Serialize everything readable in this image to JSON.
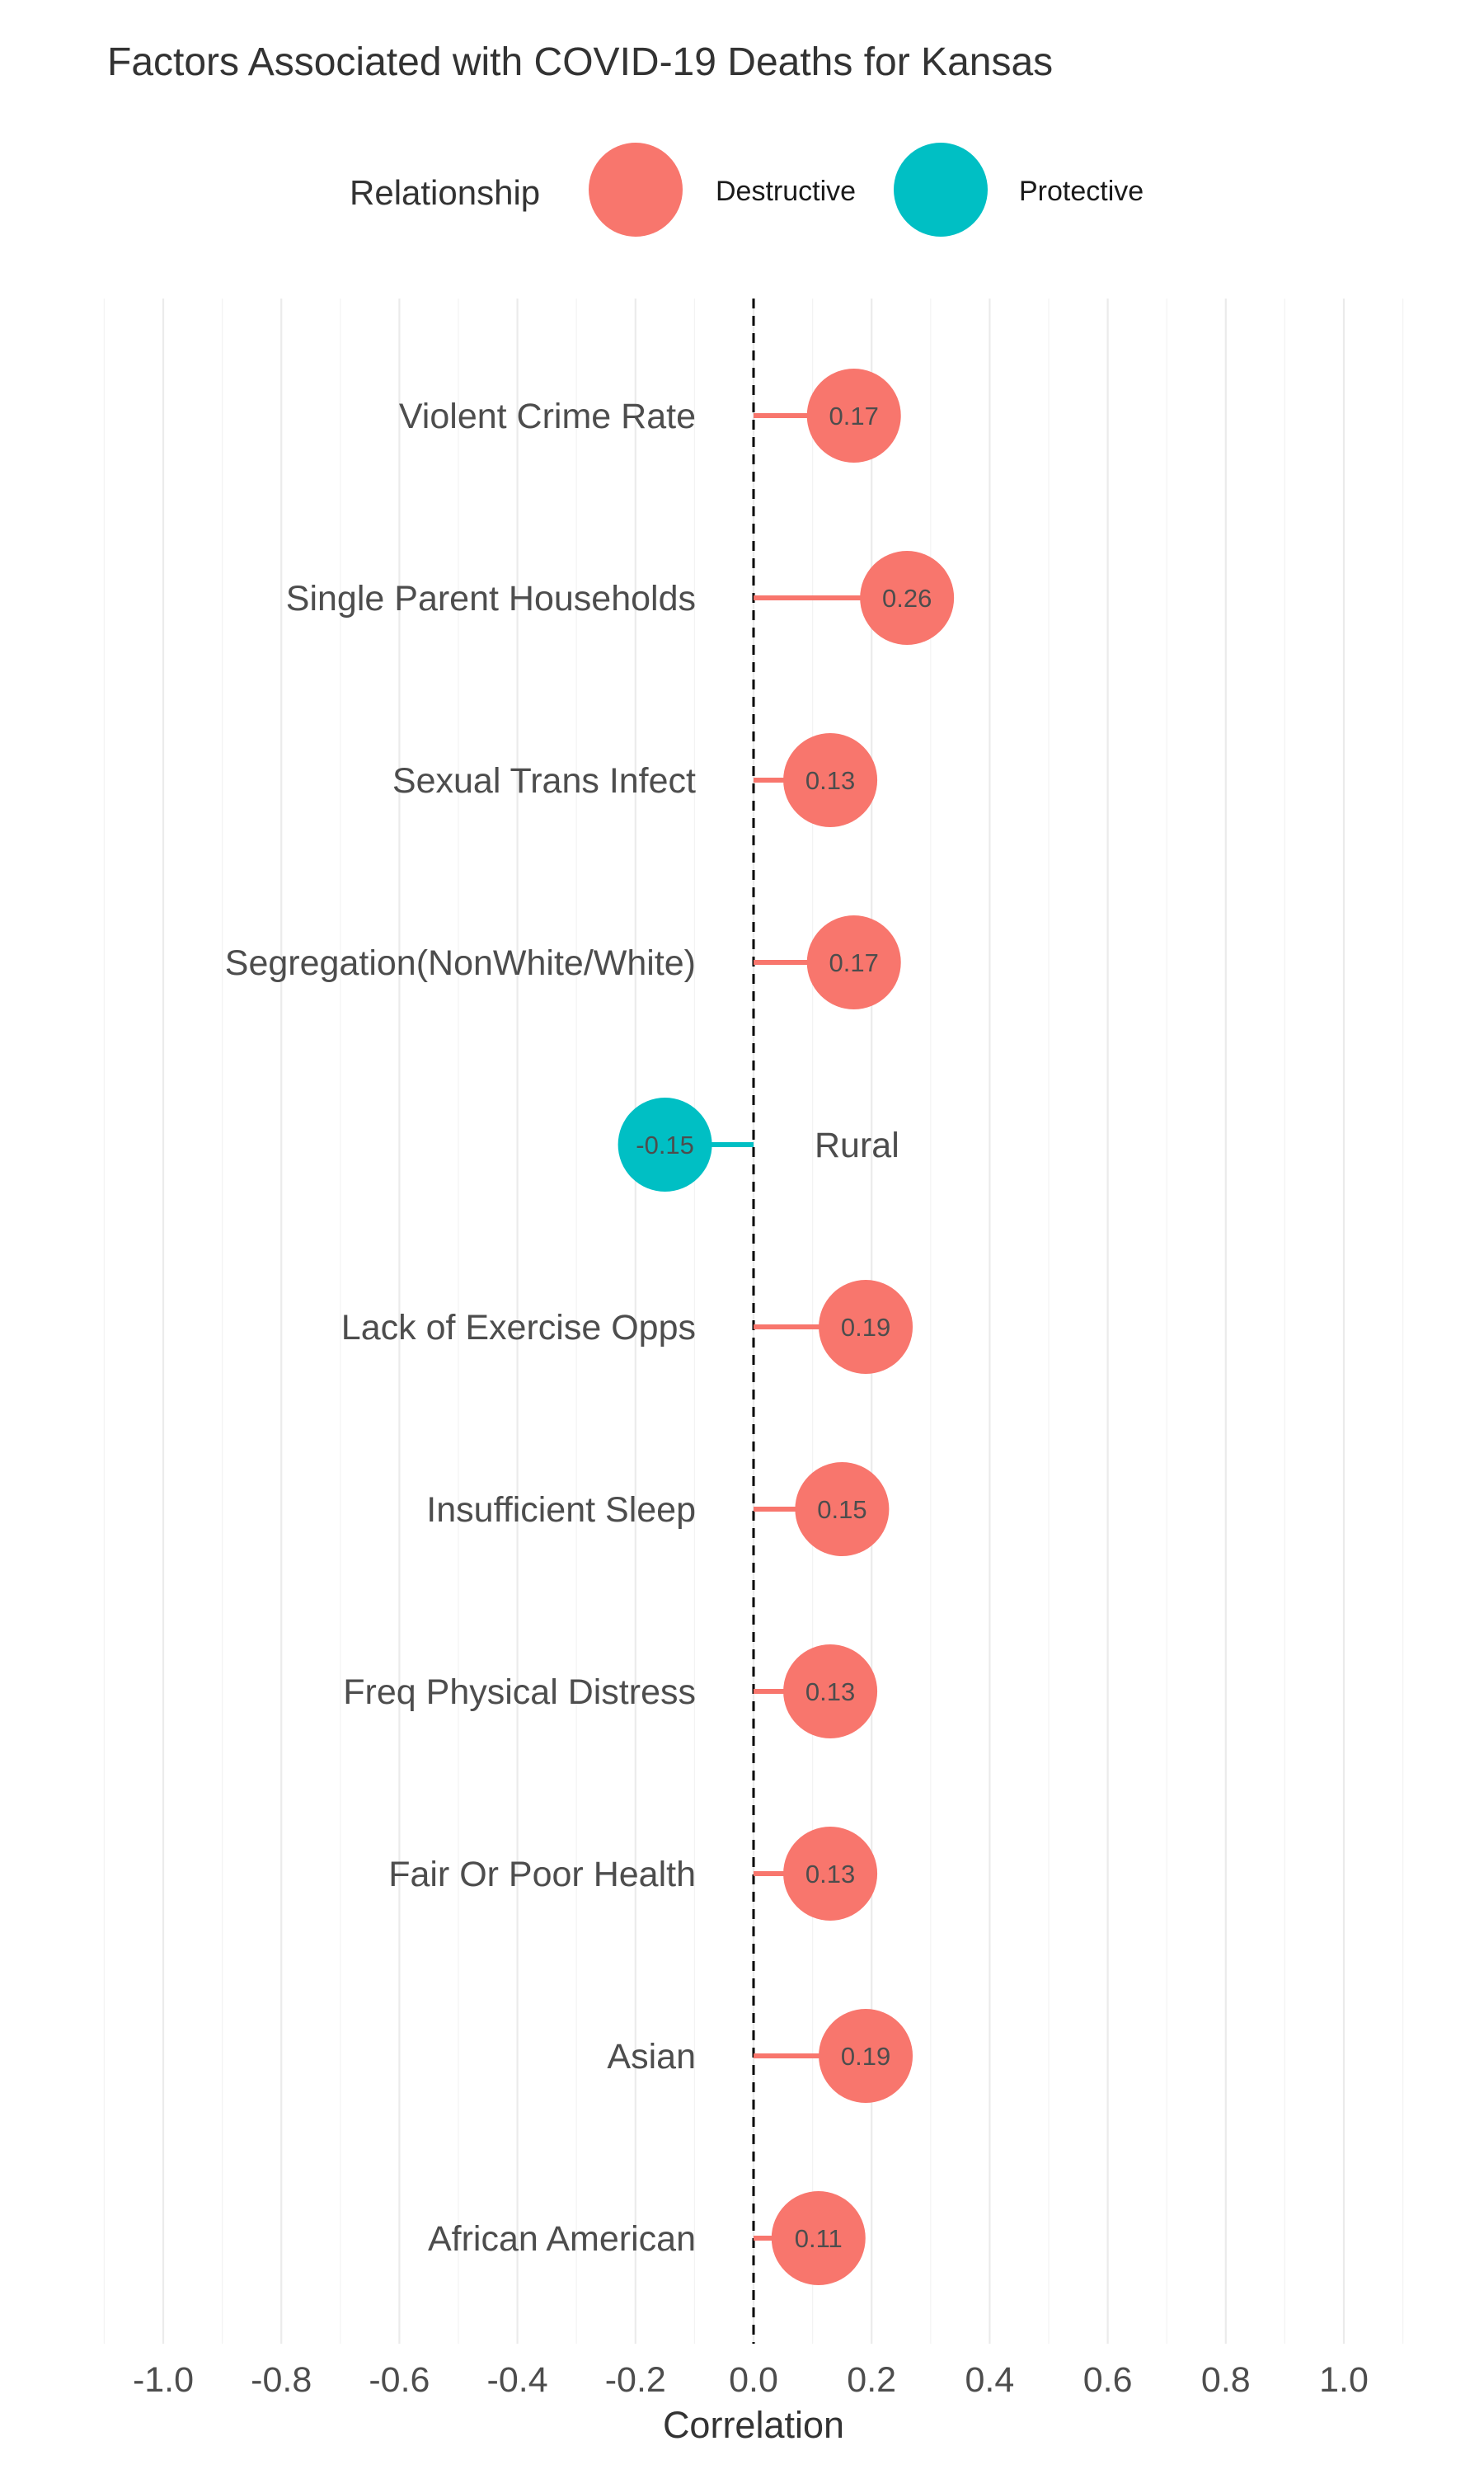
{
  "chart_data": {
    "type": "lollipop",
    "title": "Factors Associated with COVID-19 Deaths for Kansas",
    "xlabel": "Correlation",
    "ylabel": "",
    "xlim": [
      -1.1,
      1.1
    ],
    "x_ticks": [
      "-1.0",
      "-0.8",
      "-0.6",
      "-0.4",
      "-0.2",
      "0.0",
      "0.2",
      "0.4",
      "0.6",
      "0.8",
      "1.0"
    ],
    "x_tick_values": [
      -1.0,
      -0.8,
      -0.6,
      -0.4,
      -0.2,
      0.0,
      0.2,
      0.4,
      0.6,
      0.8,
      1.0
    ],
    "grid": true,
    "reference_line": 0,
    "legend": {
      "title": "Relationship",
      "placement": "top",
      "entries": [
        {
          "label": "Destructive",
          "color": "#F8766D"
        },
        {
          "label": "Protective",
          "color": "#00BFC4"
        }
      ]
    },
    "categories": [
      "Violent Crime Rate",
      "Single Parent Households",
      "Sexual Trans Infect",
      "Segregation(NonWhite/White)",
      "Rural",
      "Lack of Exercise Opps",
      "Insufficient Sleep",
      "Freq Physical Distress",
      "Fair Or Poor Health",
      "Asian",
      "African American"
    ],
    "values": [
      0.17,
      0.26,
      0.13,
      0.17,
      -0.15,
      0.19,
      0.15,
      0.13,
      0.13,
      0.19,
      0.11
    ],
    "value_labels": [
      "0.17",
      "0.26",
      "0.13",
      "0.17",
      "-0.15",
      "0.19",
      "0.15",
      "0.13",
      "0.13",
      "0.19",
      "0.11"
    ],
    "relationship": [
      "Destructive",
      "Destructive",
      "Destructive",
      "Destructive",
      "Protective",
      "Destructive",
      "Destructive",
      "Destructive",
      "Destructive",
      "Destructive",
      "Destructive"
    ]
  }
}
